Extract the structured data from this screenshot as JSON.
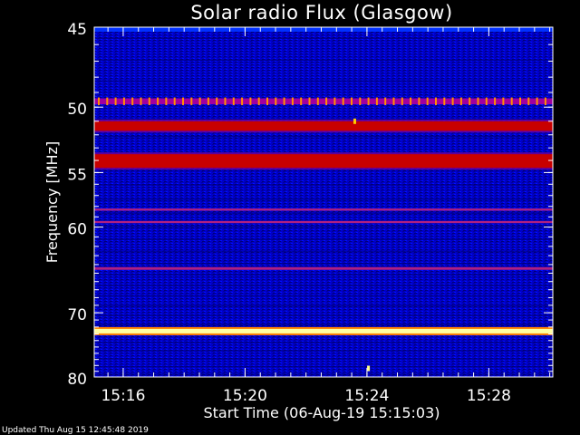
{
  "chart_data": {
    "type": "heatmap",
    "title": "Solar radio Flux (Glasgow)",
    "xlabel": "Start Time (06-Aug-19 15:15:03)",
    "ylabel": "Frequency [MHz]",
    "x_ticks": [
      "15:16",
      "15:20",
      "15:24",
      "15:28"
    ],
    "x_tick_minutes": [
      16,
      20,
      24,
      28
    ],
    "xlim_minutes": [
      15.05,
      30.1
    ],
    "y_ticks": [
      45,
      50,
      55,
      60,
      70,
      80
    ],
    "ylim": [
      45,
      80
    ],
    "y_scale": "reciprocal",
    "footer": "Updated Thu Aug 15 12:45:48 2019",
    "colors": {
      "background": "#0000a8",
      "low": "#000060",
      "mid": "#ff0000",
      "high": "#ffffff"
    },
    "bands": [
      {
        "freq_from": 49.4,
        "freq_to": 49.8,
        "intensity": "dotted-orange"
      },
      {
        "freq_from": 51.0,
        "freq_to": 51.7,
        "intensity": "red"
      },
      {
        "freq_from": 53.5,
        "freq_to": 54.6,
        "intensity": "red"
      },
      {
        "freq_from": 58.2,
        "freq_to": 58.4,
        "intensity": "magenta"
      },
      {
        "freq_from": 59.4,
        "freq_to": 59.6,
        "intensity": "magenta"
      },
      {
        "freq_from": 64.3,
        "freq_to": 64.6,
        "intensity": "magenta"
      },
      {
        "freq_from": 72.4,
        "freq_to": 72.8,
        "intensity": "white-hot"
      }
    ],
    "spots": [
      {
        "time_minutes": 23.6,
        "freq": 51.0,
        "color": "#ffcc00"
      },
      {
        "time_minutes": 24.05,
        "freq": 78.5,
        "color": "#ffff80"
      }
    ]
  }
}
